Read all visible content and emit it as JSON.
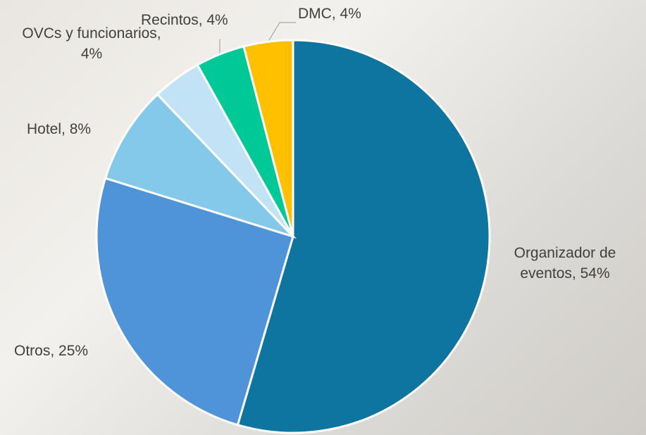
{
  "chart_data": {
    "type": "pie",
    "values": [
      54,
      25,
      8,
      4,
      4,
      4
    ],
    "value_labels": [
      "Organizador de eventos, 54%",
      "Otros, 25%",
      "Hotel, 8%",
      "OVCs y funcionarios, 4%",
      "Recintos, 4%",
      "DMC, 4%"
    ],
    "colors": [
      "#0e74a0",
      "#4f94d9",
      "#84c9ea",
      "#c2e3f5",
      "#00c896",
      "#ffc000"
    ]
  }
}
